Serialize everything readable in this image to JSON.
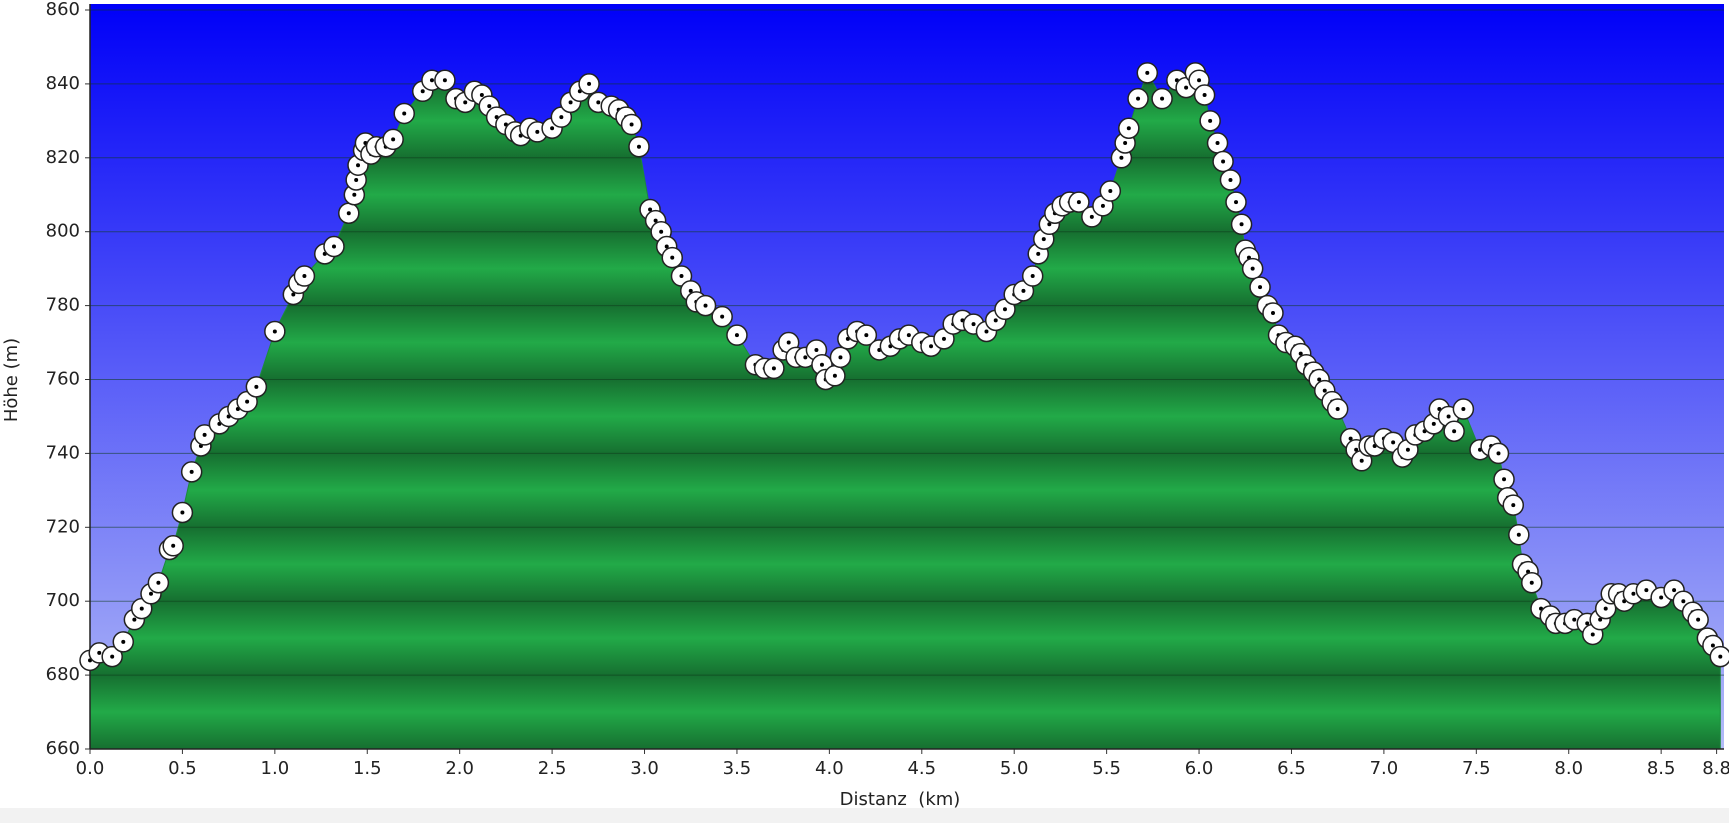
{
  "chart_data": {
    "type": "area",
    "xlabel": "Distanz  (km)",
    "ylabel": "Höhe (m)",
    "x": [
      0.0,
      0.05,
      0.12,
      0.18,
      0.24,
      0.28,
      0.33,
      0.37,
      0.43,
      0.45,
      0.5,
      0.55,
      0.6,
      0.62,
      0.7,
      0.75,
      0.8,
      0.85,
      0.9,
      1.0,
      1.1,
      1.13,
      1.16,
      1.27,
      1.32,
      1.4,
      1.43,
      1.44,
      1.45,
      1.48,
      1.49,
      1.52,
      1.55,
      1.6,
      1.64,
      1.7,
      1.8,
      1.85,
      1.92,
      1.98,
      2.03,
      2.08,
      2.12,
      2.16,
      2.2,
      2.25,
      2.3,
      2.33,
      2.38,
      2.42,
      2.5,
      2.55,
      2.6,
      2.65,
      2.7,
      2.75,
      2.82,
      2.86,
      2.9,
      2.93,
      2.97,
      3.03,
      3.06,
      3.09,
      3.12,
      3.15,
      3.2,
      3.25,
      3.28,
      3.33,
      3.42,
      3.5,
      3.6,
      3.65,
      3.7,
      3.75,
      3.78,
      3.82,
      3.87,
      3.93,
      3.96,
      3.98,
      4.03,
      4.06,
      4.1,
      4.15,
      4.2,
      4.27,
      4.33,
      4.38,
      4.43,
      4.5,
      4.55,
      4.62,
      4.67,
      4.72,
      4.78,
      4.85,
      4.9,
      4.95,
      5.0,
      5.05,
      5.1,
      5.13,
      5.16,
      5.19,
      5.22,
      5.26,
      5.3,
      5.35,
      5.42,
      5.48,
      5.52,
      5.58,
      5.6,
      5.62,
      5.67,
      5.72,
      5.8,
      5.88,
      5.93,
      5.98,
      6.0,
      6.03,
      6.06,
      6.1,
      6.13,
      6.17,
      6.2,
      6.23,
      6.25,
      6.27,
      6.29,
      6.33,
      6.37,
      6.4,
      6.43,
      6.47,
      6.52,
      6.55,
      6.58,
      6.62,
      6.65,
      6.68,
      6.72,
      6.75,
      6.82,
      6.85,
      6.88,
      6.92,
      6.95,
      7.0,
      7.05,
      7.1,
      7.13,
      7.17,
      7.22,
      7.27,
      7.3,
      7.35,
      7.38,
      7.43,
      7.52,
      7.58,
      7.62,
      7.65,
      7.67,
      7.7,
      7.73,
      7.75,
      7.78,
      7.8,
      7.85,
      7.9,
      7.93,
      7.98,
      8.03,
      8.1,
      8.13,
      8.17,
      8.2,
      8.23,
      8.27,
      8.3,
      8.35,
      8.42,
      8.5,
      8.57,
      8.62,
      8.67,
      8.7,
      8.75,
      8.78,
      8.82
    ],
    "values": [
      684,
      686,
      685,
      689,
      695,
      698,
      702,
      705,
      714,
      715,
      724,
      735,
      742,
      745,
      748,
      750,
      752,
      754,
      758,
      773,
      783,
      786,
      788,
      794,
      796,
      805,
      810,
      814,
      818,
      822,
      824,
      821,
      823,
      823,
      825,
      832,
      838,
      841,
      841,
      836,
      835,
      838,
      837,
      834,
      831,
      829,
      827,
      826,
      828,
      827,
      828,
      831,
      835,
      838,
      840,
      835,
      834,
      833,
      831,
      829,
      823,
      806,
      803,
      800,
      796,
      793,
      788,
      784,
      781,
      780,
      777,
      772,
      764,
      763,
      763,
      768,
      770,
      766,
      766,
      768,
      764,
      760,
      761,
      766,
      771,
      773,
      772,
      768,
      769,
      771,
      772,
      770,
      769,
      771,
      775,
      776,
      775,
      773,
      776,
      779,
      783,
      784,
      788,
      794,
      798,
      802,
      805,
      807,
      808,
      808,
      804,
      807,
      811,
      820,
      824,
      828,
      836,
      843,
      836,
      841,
      839,
      843,
      841,
      837,
      830,
      824,
      819,
      814,
      808,
      802,
      795,
      793,
      790,
      785,
      780,
      778,
      772,
      770,
      769,
      767,
      764,
      762,
      760,
      757,
      754,
      752,
      744,
      741,
      738,
      742,
      742,
      744,
      743,
      739,
      741,
      745,
      746,
      748,
      752,
      750,
      746,
      752,
      741,
      742,
      740,
      733,
      728,
      726,
      718,
      710,
      708,
      705,
      698,
      696,
      694,
      694,
      695,
      694,
      691,
      695,
      698,
      702,
      702,
      700,
      702,
      703,
      701,
      703,
      700,
      697,
      695,
      690,
      688,
      685
    ],
    "color": "#22aa48",
    "xlim": [
      0,
      8.84
    ],
    "ylim": [
      660,
      860
    ],
    "xticks": [
      {
        "value": 0,
        "label": "0.0"
      },
      0.5,
      {
        "value": 1,
        "label": "1.0"
      },
      1.5,
      {
        "value": 2,
        "label": "2.0"
      },
      2.5,
      {
        "value": 3,
        "label": "3.0"
      },
      3.5,
      {
        "value": 4,
        "label": "4.0"
      },
      4.5,
      {
        "value": 5,
        "label": "5.0"
      },
      5.5,
      {
        "value": 6,
        "label": "6.0"
      },
      6.5,
      {
        "value": 7,
        "label": "7.0"
      },
      7.5,
      {
        "value": 8,
        "label": "8.0"
      },
      8.5,
      8.8
    ],
    "yticks": [
      660,
      680,
      700,
      720,
      740,
      760,
      780,
      800,
      820,
      840,
      860
    ],
    "grid": true
  }
}
